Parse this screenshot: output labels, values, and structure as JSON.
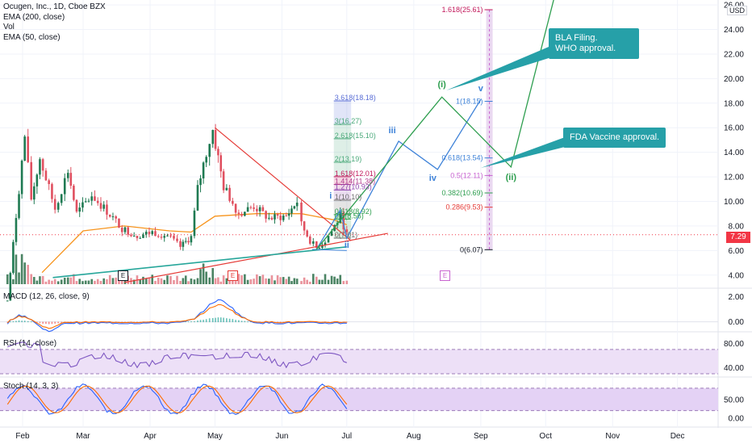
{
  "legend": {
    "symbol": "Ocugen, Inc., 1D, Cboe BZX",
    "ema200": "EMA (200, close)",
    "vol": "Vol",
    "ema50": "EMA (50, close)"
  },
  "currency": "USD",
  "current_price": "7.29",
  "macd_label": "MACD (12, 26, close, 9)",
  "rsi_label": "RSI (14, close)",
  "stoch_label": "Stoch (14, 3, 3)",
  "callouts": {
    "bla": "BLA Filing.\nWHO approval.",
    "fda": "FDA Vaccine approval."
  },
  "earnings_marker": "E",
  "colors": {
    "up": "#1f7a52",
    "down": "#e05060",
    "ema50": "#f7941d",
    "triangle": "#e53935",
    "support": "#26a69a",
    "wave_green": "#2e9e4f",
    "wave_blue": "#3e82d8",
    "callout": "#26a0a8",
    "fib_band": "#e8d5f0",
    "rsi_band": "#ede0f7",
    "stoch_band": "#e4d2f5"
  },
  "chart_data": [
    {
      "type": "candlestick",
      "title": "Ocugen, Inc., 1D, Cboe BZX",
      "x_axis": {
        "ticks": [
          "Feb",
          "Mar",
          "Apr",
          "May",
          "Jun",
          "Jul",
          "Aug",
          "Sep",
          "Oct",
          "Nov",
          "Dec"
        ]
      },
      "y_axis": {
        "ticks": [
          4,
          6,
          8,
          10,
          12,
          14,
          16,
          18,
          20,
          22,
          24,
          26
        ],
        "ylim": [
          3.0,
          26.4
        ],
        "tick_format": "fixed2"
      },
      "grid": true,
      "price_path": [
        [
          "2021-01-25",
          1.9
        ],
        [
          "2021-01-29",
          8.8
        ],
        [
          "2021-02-02",
          15.3
        ],
        [
          "2021-02-05",
          10.2
        ],
        [
          "2021-02-09",
          13.5
        ],
        [
          "2021-02-16",
          9.4
        ],
        [
          "2021-02-22",
          12.5
        ],
        [
          "2021-02-26",
          9.0
        ],
        [
          "2021-03-05",
          10.5
        ],
        [
          "2021-03-12",
          9.2
        ],
        [
          "2021-03-19",
          7.8
        ],
        [
          "2021-03-26",
          7.2
        ],
        [
          "2021-04-02",
          7.5
        ],
        [
          "2021-04-09",
          7.2
        ],
        [
          "2021-04-15",
          6.3
        ],
        [
          "2021-04-20",
          7.1
        ],
        [
          "2021-04-23",
          11.0
        ],
        [
          "2021-04-27",
          14.0
        ],
        [
          "2021-04-30",
          15.8
        ],
        [
          "2021-05-05",
          11.2
        ],
        [
          "2021-05-12",
          9.0
        ],
        [
          "2021-05-19",
          9.6
        ],
        [
          "2021-05-26",
          8.6
        ],
        [
          "2021-06-03",
          8.8
        ],
        [
          "2021-06-08",
          10.0
        ],
        [
          "2021-06-10",
          8.1
        ],
        [
          "2021-06-14",
          6.8
        ],
        [
          "2021-06-17",
          6.2
        ],
        [
          "2021-06-21",
          6.8
        ],
        [
          "2021-06-24",
          7.6
        ],
        [
          "2021-06-28",
          8.8
        ],
        [
          "2021-07-01",
          7.29
        ]
      ],
      "ema50": [
        [
          "2021-02-10",
          4.2
        ],
        [
          "2021-03-01",
          7.6
        ],
        [
          "2021-03-20",
          8.0
        ],
        [
          "2021-04-10",
          7.6
        ],
        [
          "2021-04-20",
          7.5
        ],
        [
          "2021-05-01",
          8.8
        ],
        [
          "2021-05-20",
          9.0
        ],
        [
          "2021-06-10",
          9.0
        ],
        [
          "2021-06-25",
          8.5
        ],
        [
          "2021-07-01",
          8.1
        ]
      ],
      "last_price": 7.29,
      "annotations": {
        "fib_extension_left": [
          {
            "ratio": "3.618",
            "price": 18.18
          },
          {
            "ratio": "3",
            "price": 16.27
          },
          {
            "ratio": "2.618",
            "price": 15.1
          },
          {
            "ratio": "2",
            "price": 13.19
          },
          {
            "ratio": "1.618",
            "price": 12.01
          },
          {
            "ratio": "1.414",
            "price": 11.38
          },
          {
            "ratio": "1.27",
            "price": 10.93
          },
          {
            "ratio": "1",
            "price": 10.1
          },
          {
            "ratio": "0.618",
            "price": 8.92
          },
          {
            "ratio": "0.5",
            "price": 8.56
          },
          {
            "ratio": "0",
            "price": 7.01
          }
        ],
        "fib_extension_right": [
          {
            "ratio": "1.618",
            "price": 25.61
          },
          {
            "ratio": "1",
            "price": 18.15
          },
          {
            "ratio": "0.618",
            "price": 13.54
          },
          {
            "ratio": "0.5",
            "price": 12.11
          },
          {
            "ratio": "0.382",
            "price": 10.69
          },
          {
            "ratio": "0.286",
            "price": 9.53
          },
          {
            "ratio": "0",
            "price": 6.07
          }
        ],
        "waves_blue": [
          {
            "label": "i",
            "date": "2021-06-28",
            "price": 9.3
          },
          {
            "label": "ii",
            "date": "2021-07-01",
            "price": 7.0
          },
          {
            "label": "iii",
            "date": "2021-07-25",
            "price": 14.9
          },
          {
            "label": "iv",
            "date": "2021-08-12",
            "price": 12.6
          },
          {
            "label": "v",
            "date": "2021-09-01",
            "price": 18.3
          }
        ],
        "waves_green": [
          {
            "label": "(i)",
            "date": "2021-08-14",
            "price": 18.5
          },
          {
            "label": "(ii)",
            "date": "2021-09-15",
            "price": 12.8
          }
        ]
      }
    },
    {
      "type": "bar",
      "title": "Vol",
      "note": "volume histogram, no axis values shown"
    },
    {
      "type": "line",
      "title": "MACD (12, 26, close, 9)",
      "y_axis": {
        "ticks": [
          0.0,
          2.0
        ],
        "ylim": [
          -0.6,
          2.6
        ],
        "tick_format": "fixed2"
      }
    },
    {
      "type": "line",
      "title": "RSI (14, close)",
      "y_axis": {
        "ticks": [
          40.0,
          80.0
        ],
        "ylim": [
          26,
          95
        ],
        "tick_format": "fixed2"
      },
      "bands": [
        30,
        70
      ]
    },
    {
      "type": "line",
      "title": "Stoch (14, 3, 3)",
      "y_axis": {
        "ticks": [
          0.0,
          50.0
        ],
        "ylim": [
          -22,
          108
        ],
        "tick_format": "fixed2"
      },
      "bands": [
        20,
        80
      ]
    }
  ]
}
